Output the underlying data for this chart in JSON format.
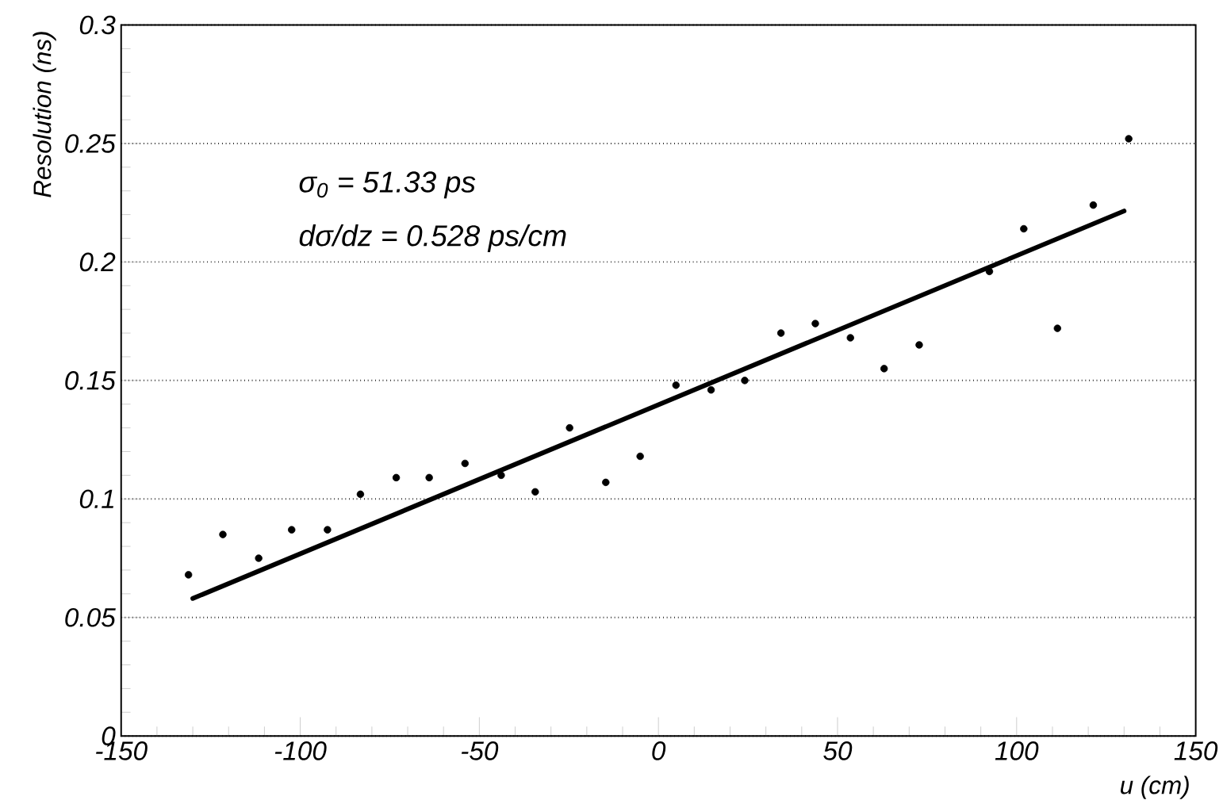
{
  "chart_data": {
    "type": "scatter",
    "xlabel": "u (cm)",
    "ylabel": "Resolution (ns)",
    "annotations": [
      "σ$_{0}$ =  51.33 ps",
      "dσ/dz =  0.528 ps/cm"
    ],
    "xlim": [
      -150,
      150
    ],
    "ylim": [
      0,
      0.3
    ],
    "xticks": [
      -150,
      -100,
      -50,
      0,
      50,
      100,
      150
    ],
    "yticks": [
      0,
      0.05,
      0.1,
      0.15,
      0.2,
      0.25,
      0.3
    ],
    "grid": "y",
    "series": [
      {
        "marker": "circle",
        "color": "#000000",
        "x": [
          -131.2,
          -121.6,
          -111.6,
          -102.4,
          -92.4,
          -83.2,
          -73.2,
          -64.0,
          -54.0,
          -43.9,
          -34.4,
          -24.8,
          -14.7,
          -5.1,
          4.9,
          14.7,
          24.1,
          34.2,
          43.8,
          53.6,
          63.0,
          72.8,
          92.4,
          102.0,
          111.4,
          121.4,
          131.3
        ],
        "values": [
          0.068,
          0.085,
          0.075,
          0.087,
          0.087,
          0.102,
          0.109,
          0.109,
          0.115,
          0.11,
          0.103,
          0.13,
          0.107,
          0.118,
          0.148,
          0.146,
          0.15,
          0.17,
          0.174,
          0.168,
          0.155,
          0.165,
          0.196,
          0.214,
          0.172,
          0.224,
          0.252
        ]
      },
      {
        "type": "line",
        "marker": "none",
        "line_style": "solid",
        "color": "#000000",
        "x": [
          -130,
          130
        ],
        "values": [
          0.058,
          0.2215
        ]
      }
    ]
  }
}
